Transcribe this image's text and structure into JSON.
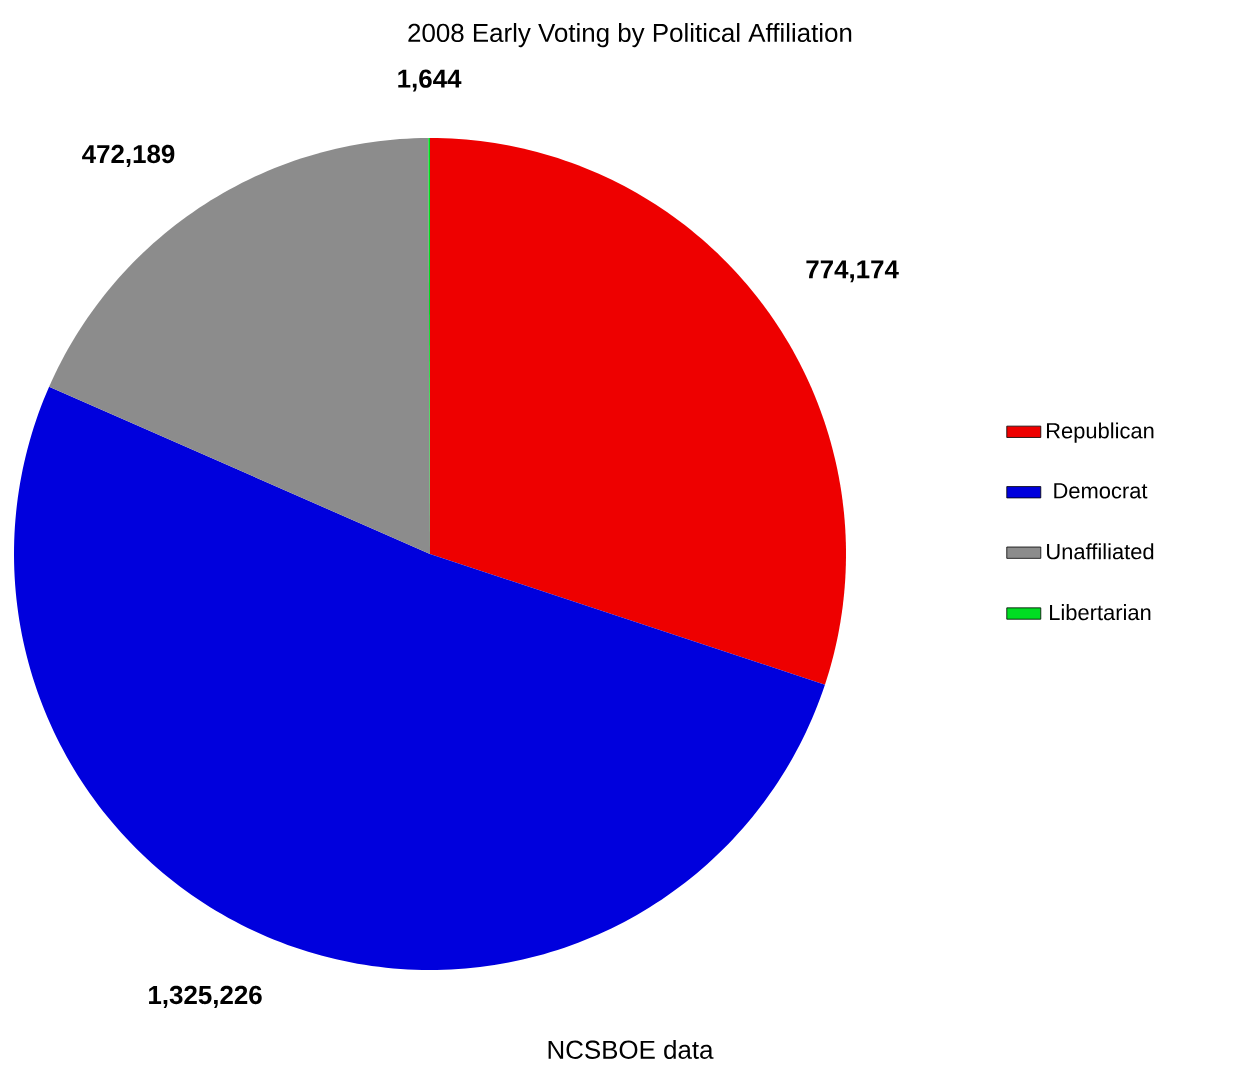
{
  "chart_data": {
    "type": "pie",
    "title": "2008 Early Voting by Political Affiliation",
    "categories": [
      "Republican",
      "Democrat",
      "Unaffiliated",
      "Libertarian"
    ],
    "values": [
      774174,
      1325226,
      472189,
      1644
    ],
    "colors": [
      "#ee0000",
      "#0000dd",
      "#8c8c8c",
      "#00dd22"
    ],
    "value_labels": [
      "774,174",
      "1,325,226",
      "472,189",
      "1,644"
    ],
    "legend": "right",
    "annotations": [
      "NCSBOE data"
    ]
  }
}
